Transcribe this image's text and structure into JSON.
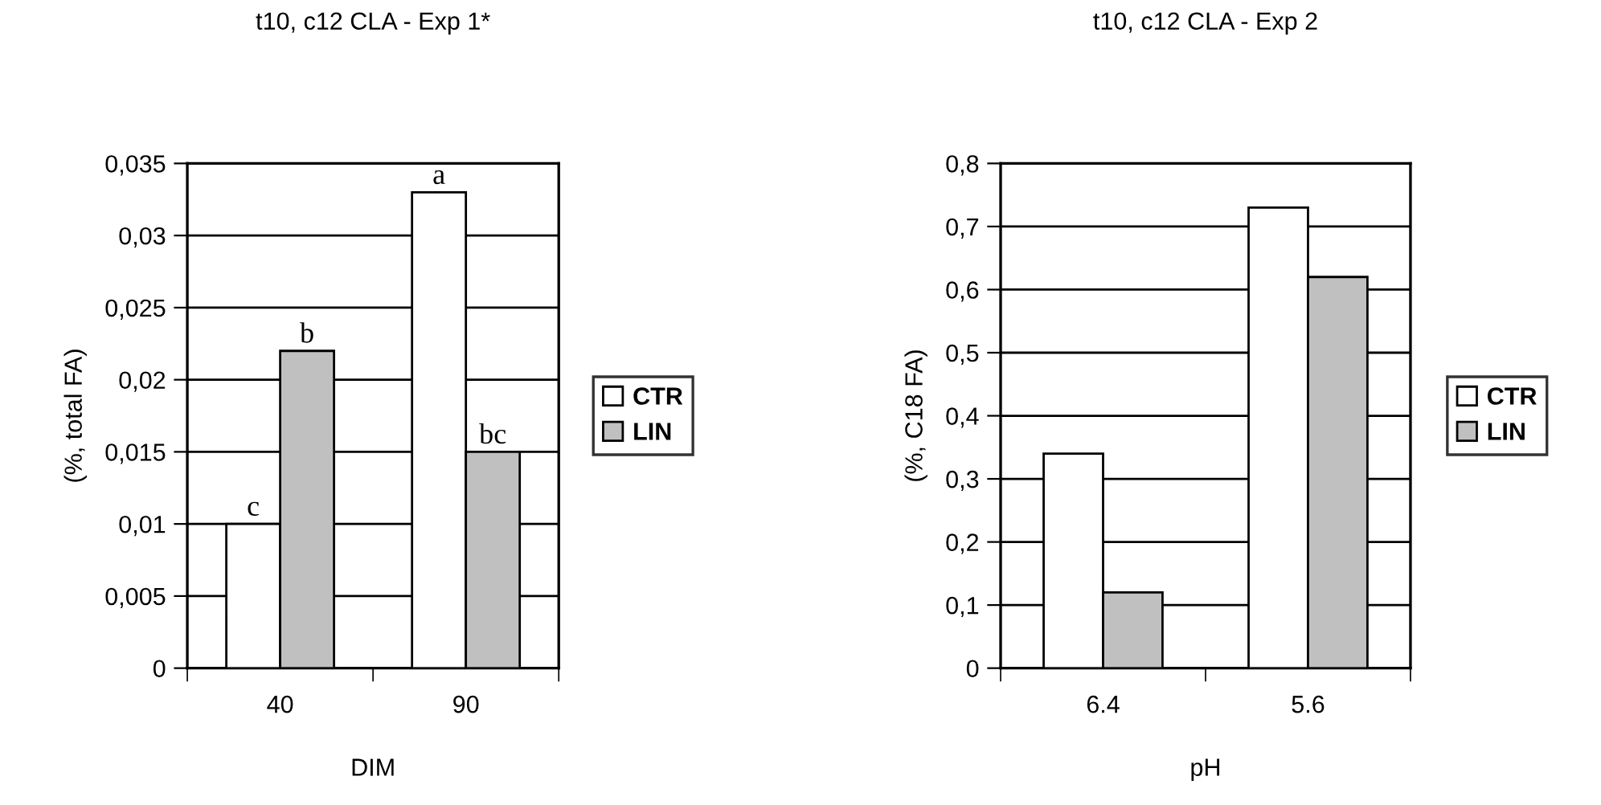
{
  "chart_data": [
    {
      "type": "bar",
      "title": "t10, c12 CLA - Exp 1*",
      "xlabel": "DIM",
      "ylabel": "(%, total FA)",
      "categories": [
        "40",
        "90"
      ],
      "series": [
        {
          "name": "CTR",
          "color": "#ffffff",
          "values": [
            0.01,
            0.033
          ]
        },
        {
          "name": "LIN",
          "color": "#c0c0c0",
          "values": [
            0.022,
            0.015
          ]
        }
      ],
      "ylim": [
        0,
        0.035
      ],
      "yticks": [
        {
          "value": 0,
          "label": "0"
        },
        {
          "value": 0.005,
          "label": "0,005"
        },
        {
          "value": 0.01,
          "label": "0,01"
        },
        {
          "value": 0.015,
          "label": "0,015"
        },
        {
          "value": 0.02,
          "label": "0,02"
        },
        {
          "value": 0.025,
          "label": "0,025"
        },
        {
          "value": 0.03,
          "label": "0,03"
        },
        {
          "value": 0.035,
          "label": "0,035"
        }
      ],
      "annotations": [
        {
          "text": "c",
          "x": "40",
          "y": 0.01
        },
        {
          "text": "b",
          "x": "40",
          "y": 0.022
        },
        {
          "text": "a",
          "x": "90",
          "y": 0.033
        },
        {
          "text": "bc",
          "x": "90",
          "y": 0.015
        }
      ],
      "grid": "y",
      "legend": "right"
    },
    {
      "type": "bar",
      "title": "t10, c12 CLA - Exp 2",
      "xlabel": "pH",
      "ylabel": "(%, C18 FA)",
      "categories": [
        "6.4",
        "5.6"
      ],
      "series": [
        {
          "name": "CTR",
          "color": "#ffffff",
          "values": [
            0.34,
            0.73
          ]
        },
        {
          "name": "LIN",
          "color": "#c0c0c0",
          "values": [
            0.12,
            0.62
          ]
        }
      ],
      "ylim": [
        0,
        0.8
      ],
      "yticks": [
        {
          "value": 0,
          "label": "0"
        },
        {
          "value": 0.1,
          "label": "0,1"
        },
        {
          "value": 0.2,
          "label": "0,2"
        },
        {
          "value": 0.3,
          "label": "0,3"
        },
        {
          "value": 0.4,
          "label": "0,4"
        },
        {
          "value": 0.5,
          "label": "0,5"
        },
        {
          "value": 0.6,
          "label": "0,6"
        },
        {
          "value": 0.7,
          "label": "0,7"
        },
        {
          "value": 0.8,
          "label": "0,8"
        }
      ],
      "grid": "y",
      "legend": "right"
    }
  ]
}
